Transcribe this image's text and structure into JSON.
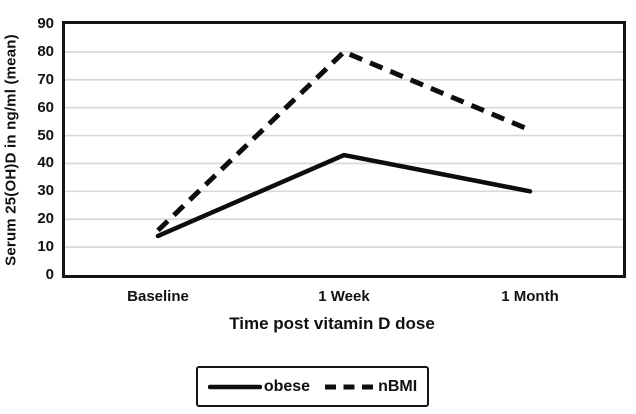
{
  "chart_data": {
    "type": "line",
    "categories": [
      "Baseline",
      "1 Week",
      "1 Month"
    ],
    "series": [
      {
        "name": "obese",
        "style": "solid",
        "values": [
          14,
          43,
          30
        ]
      },
      {
        "name": "nBMI",
        "style": "dashed",
        "values": [
          16,
          80,
          52
        ]
      }
    ],
    "title": "",
    "xlabel": "Time post vitamin D dose",
    "ylabel": "Serum 25(OH)D in  ng/ml (mean)",
    "ylim": [
      0,
      90
    ],
    "ytick_step": 10,
    "yticks": [
      "90",
      "80",
      "70",
      "60",
      "50",
      "40",
      "30",
      "20",
      "10",
      "0"
    ],
    "grid": "horizontal",
    "legend_position": "bottom"
  },
  "colors": {
    "line": "#0d0d0d",
    "grid": "#d8d8d8",
    "background": "#ffffff",
    "frame": "#141414"
  },
  "legend": {
    "items": [
      {
        "label": "obese",
        "style": "solid"
      },
      {
        "label": "nBMI",
        "style": "dashed"
      }
    ]
  }
}
